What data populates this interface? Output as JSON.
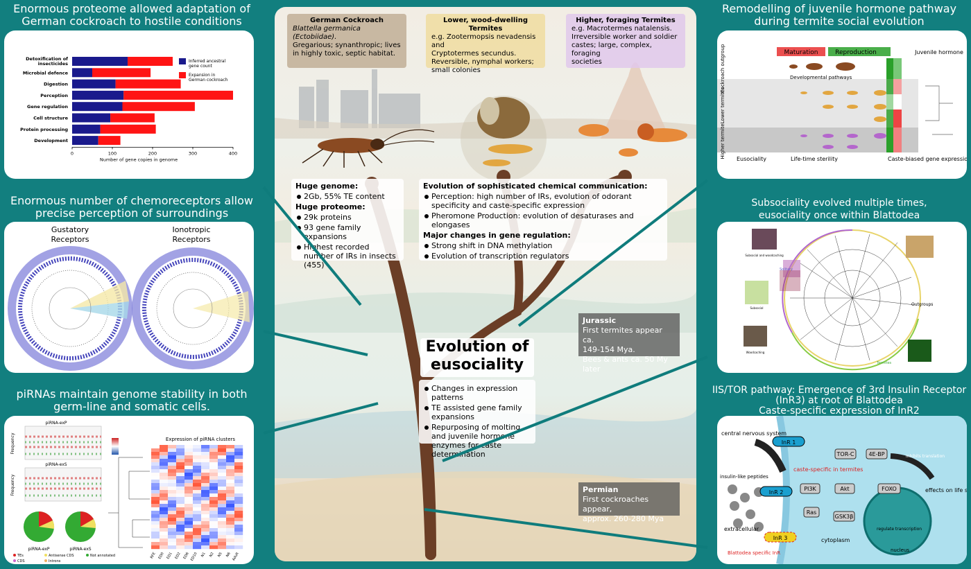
{
  "panels": {
    "proteome": {
      "title1": "Enormous proteome allowed adaptation of",
      "title2": "German cockroach to hostile conditions"
    },
    "chemo": {
      "title1": "Enormous number of chemoreceptors allow",
      "title2": "precise perception of surroundings",
      "gustatory1": "Gustatory",
      "gustatory2": "Receptors",
      "iono1": "Ionotropic",
      "iono2": "Receptors"
    },
    "pirna": {
      "title1": "piRNAs maintain genome stability in both",
      "title2": "germ-line and somatic cells.",
      "expP": "piRNA-exP",
      "expS": "piRNA-exS",
      "freq": "Frequency",
      "heat_title": "Expression of piRNA clusters",
      "zscore": "Row Z-score",
      "pieP": "piRNA-exP",
      "pieS": "piRNA-exS",
      "legend": [
        "TEs",
        "Antisense CDS",
        "Not annotated",
        "CDS",
        "Introns"
      ],
      "cols": [
        "RFE",
        "ED0",
        "ED1",
        "ED2",
        "ED6",
        "ED10",
        "N1",
        "N2",
        "N5",
        "N6",
        "Adult"
      ]
    },
    "jh": {
      "title1": "Remodelling of juvenile hormone pathway",
      "title2": "during termite social evolution",
      "maturation": "Maturation",
      "reproduction": "Reproduction",
      "jh_label": "Juvenile hormone",
      "row1": "Cockroach outgroup",
      "row2": "Lower termites",
      "row3": "Higher termite",
      "dev": "Developmental pathways",
      "eus": "Eusociality",
      "life": "Life-time sterility",
      "caste": "Caste-biased gene expression"
    },
    "subsoc": {
      "title1": "Subsociality evolved multiple times,",
      "title2": "eusociality once within Blattodea",
      "outgroups": "Outgroups",
      "solitary": "Solitary",
      "termites": "Termites",
      "ph1": "Subsocial and woodcaching",
      "ph2": "Subsocial",
      "ph3": "Woodcaching"
    },
    "iis": {
      "title1": "IIS/TOR pathway: Emergence of 3rd Insulin Receptor",
      "title2": "(InR3) at root of Blattodea",
      "title3": "Caste-specific expression of InR2",
      "cns": "central nervous system",
      "secretion": "secretion",
      "insulin": "insulin-like peptides",
      "inr1": "InR 1",
      "inr2": "InR 2",
      "inr3": "InR 3",
      "caste_specific": "caste-specific in termites",
      "pi3k": "PI3K",
      "akt": "Akt",
      "torc": "TOR-C",
      "ebp": "4E-BP",
      "ras": "Ras",
      "gsk": "GSK3β",
      "foxo": "FOXO",
      "inhibits": "inhibits translation",
      "effects": "effects on life span and caste membership",
      "regulate": "regulate transcription",
      "extracellular": "extracellular",
      "cytoplasm": "cytoplasm",
      "nucleus": "nucleus",
      "blattodea": "Blattodea specific InR"
    }
  },
  "chart_data": {
    "type": "bar",
    "categories": [
      "Detoxification of insecticides",
      "Microbial defence",
      "Digestion",
      "Perception",
      "Gene regulation",
      "Cell structure",
      "Protein processing",
      "Development"
    ],
    "series": [
      {
        "name": "Inferred ancestral gene count",
        "values": [
          138,
          50,
          108,
          128,
          125,
          95,
          70,
          65
        ]
      },
      {
        "name": "Expansion in German cockroach",
        "values": [
          112,
          145,
          162,
          272,
          180,
          110,
          138,
          55
        ]
      }
    ],
    "xlabel": "Number of gene copies in genome",
    "xticks": [
      0,
      100,
      200,
      300,
      400
    ],
    "xlim": [
      0,
      400
    ],
    "legend_position": "right",
    "colors": [
      "#1a1a8c",
      "#ff1414"
    ]
  },
  "center": {
    "german": {
      "title": "German Cockroach",
      "l1": "Blattella germanica (Ectobiidae).",
      "l2": "Gregarious; synanthropic; lives",
      "l3": "in highly toxic, septic habitat."
    },
    "lower": {
      "title": "Lower, wood-dwelling Termites",
      "l1": "e.g. Zootermopsis nevadensis and",
      "l2": "Cryptotermes secundus.",
      "l3": "Reversible, nymphal workers;",
      "l4": "small colonies"
    },
    "higher": {
      "title": "Higher, foraging Termites",
      "l1": "e.g. Macrotermes natalensis.",
      "l2": "Irreversible worker and soldier",
      "l3": "castes; large, complex, foraging",
      "l4": "societies"
    },
    "genome": {
      "h1": "Huge genome:",
      "b1": "2Gb, 55% TE content",
      "h2": "Huge proteome:",
      "b2": "29k proteins",
      "b3": "93 gene family expansions",
      "b4": "Highest recorded number of IRs in insects (455)"
    },
    "chem": {
      "h1": "Evolution of sophisticated chemical communication:",
      "b1": "Perception: high number of IRs, evolution of odorant specificity and caste-specific expression",
      "b2": "Pheromone Production: evolution of desaturases and elongases",
      "h2": "Major changes in gene regulation:",
      "b3": "Strong shift in DNA methylation",
      "b4": "Evolution of transcription regulators"
    },
    "jurassic": {
      "h": "Jurassic",
      "t1": "First termites appear ca.",
      "t2": "149-154 Mya.",
      "t3": "Bees & ants ca. 50 My later"
    },
    "euso": {
      "t1": "Evolution of",
      "t2": "eusociality",
      "b1": "Changes in expression patterns",
      "b2": "TE assisted gene family expansions",
      "b3": "Repurposing of molting and juvenile hormone enzymes for caste determination"
    },
    "permian": {
      "h": "Permian",
      "t1": "First cockroaches appear,",
      "t2": "approx. 260-280 Mya"
    }
  }
}
